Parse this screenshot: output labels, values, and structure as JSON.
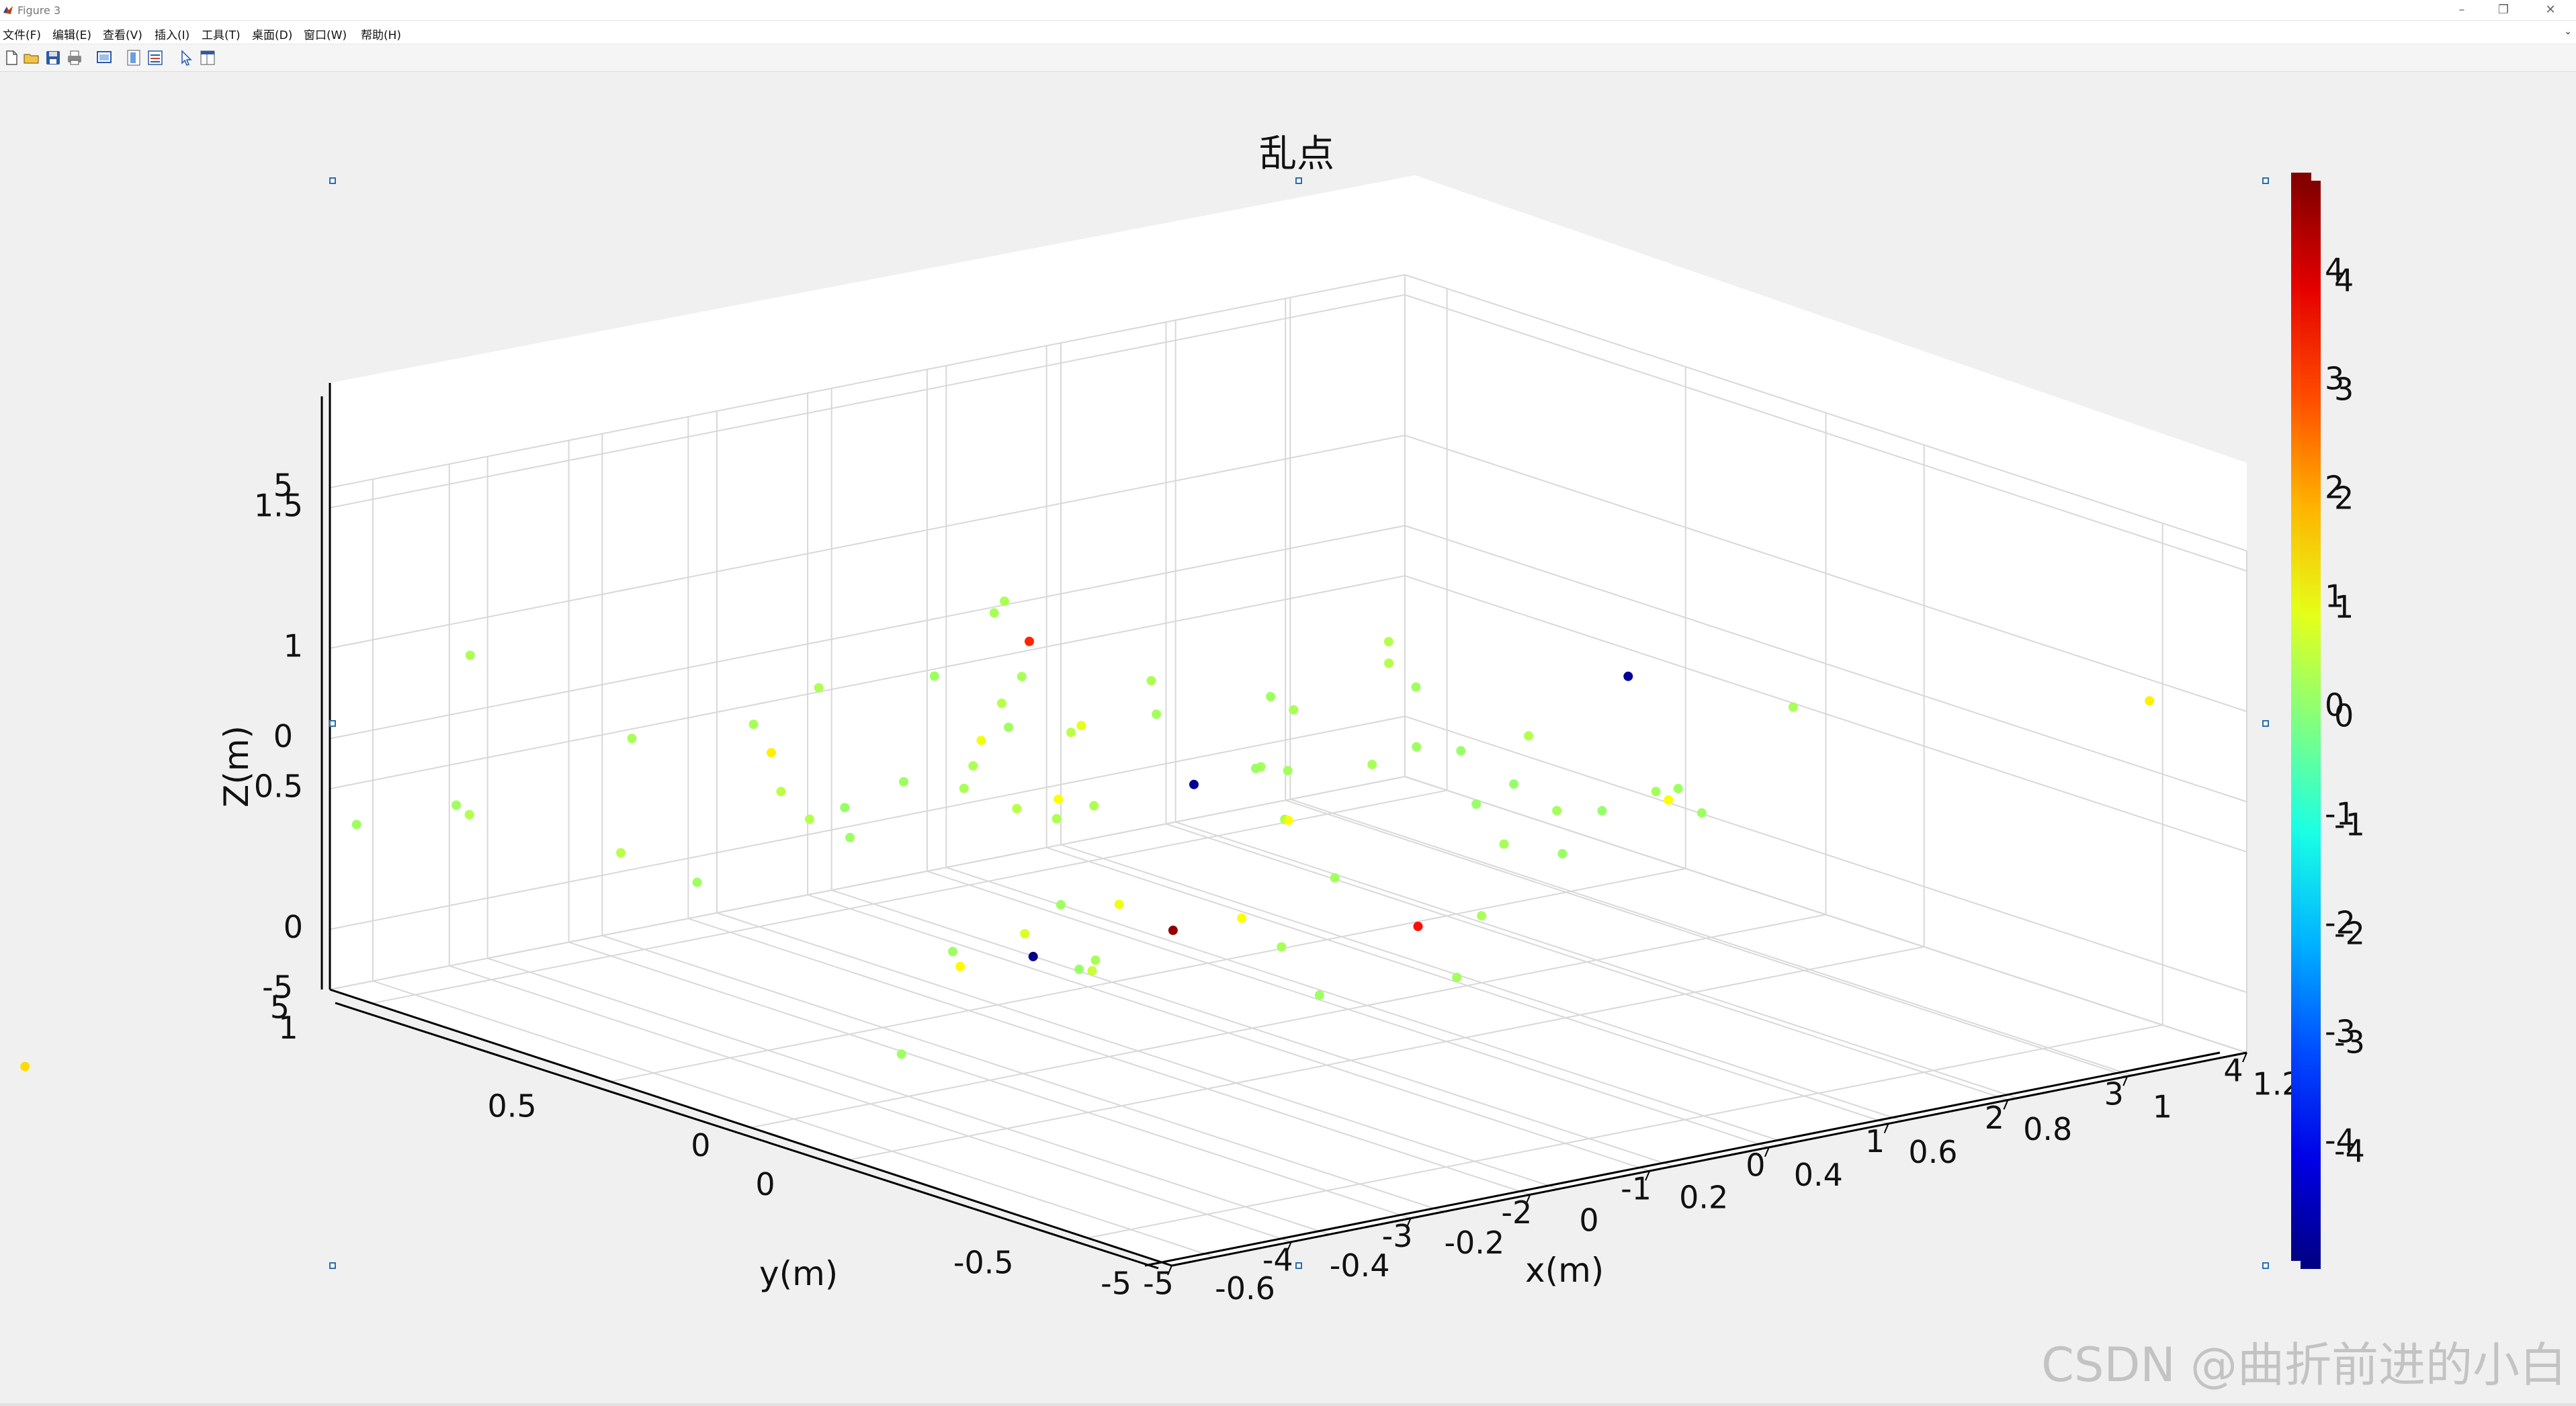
{
  "window": {
    "title": "Figure 3",
    "minimize_glyph": "–",
    "maximize_glyph": "❐",
    "close_glyph": "✕"
  },
  "menu": {
    "items": [
      "文件(F)",
      "编辑(E)",
      "查看(V)",
      "插入(I)",
      "工具(T)",
      "桌面(D)",
      "窗口(W)",
      "帮助(H)"
    ],
    "overflow_glyph": "⌄"
  },
  "toolbar": {
    "icons": [
      "new-figure-icon",
      "open-file-icon",
      "save-icon",
      "print-icon",
      "link-plot-icon",
      "insert-colorbar-icon",
      "insert-legend-icon",
      "edit-plot-arrow-icon",
      "property-inspector-icon"
    ]
  },
  "colors": {
    "grid": "#d8d8d8",
    "axis": "#000000",
    "window_bg": "#f0f0f0",
    "axes_bg": "#ffffff",
    "colormap": "jet"
  },
  "chart_data": {
    "type": "scatter3d",
    "title": "乱点",
    "xlabel": "x(m)",
    "ylabel": "y(m)",
    "zlabel": "Z(m)",
    "xlim": [
      -5,
      5
    ],
    "ylim": [
      -5,
      5
    ],
    "zlim": [
      -5,
      5
    ],
    "grid": true,
    "x_ticks": [
      "-5",
      "-4",
      "-3",
      "-2",
      "-1",
      "0",
      "1",
      "2",
      "3",
      "4"
    ],
    "x_ticks_overlay": [
      "-0.6",
      "-0.4",
      "-0.2",
      "0",
      "0.2",
      "0.4",
      "0.6",
      "0.8",
      "1",
      "1.2"
    ],
    "y_ticks": [
      "-5",
      "0",
      "5"
    ],
    "y_ticks_overlay": [
      "-0.5",
      "0",
      "0.5",
      "1"
    ],
    "z_ticks": [
      "-5",
      "0",
      "5"
    ],
    "z_ticks_overlay": [
      "0",
      "0.5",
      "1",
      "1.5"
    ],
    "colorbar": {
      "colormap": "jet",
      "range": [
        -5,
        5
      ],
      "ticks": [
        "-4",
        "-3",
        "-2",
        "-1",
        "0",
        "1",
        "2",
        "3",
        "4"
      ],
      "location": "right"
    },
    "points": [
      [
        0.1,
        0.51,
        0.03,
        0.3
      ],
      [
        0.28,
        0.45,
        0.05,
        0.45
      ],
      [
        -0.16,
        0.63,
        0.12,
        0.5
      ],
      [
        0.0,
        0.85,
        -0.05,
        0.3
      ],
      [
        0.42,
        0.13,
        0.21,
        0.2
      ],
      [
        -0.03,
        0.93,
        -0.12,
        0.3
      ],
      [
        0.12,
        0.29,
        0.18,
        0.45
      ],
      [
        0.44,
        0.74,
        0.08,
        0.4
      ],
      [
        0.23,
        0.1,
        0.12,
        0.35
      ],
      [
        0.37,
        0.58,
        0.1,
        1.0
      ],
      [
        0.54,
        0.06,
        0.14,
        0.3
      ],
      [
        -0.04,
        0.27,
        -0.21,
        0.3
      ],
      [
        0.58,
        0.45,
        0.04,
        0.3
      ],
      [
        0.39,
        0.26,
        0.19,
        0.4
      ],
      [
        0.06,
        0.91,
        0.19,
        0.45
      ],
      [
        0.69,
        0.37,
        -0.09,
        0.2
      ],
      [
        0.39,
        0.7,
        0.07,
        0.55
      ],
      [
        0.0,
        0.11,
        0.03,
        0.25
      ],
      [
        -0.05,
        0.5,
        0.01,
        0.3
      ],
      [
        0.18,
        0.66,
        -0.05,
        0.5
      ],
      [
        0.02,
        0.68,
        -0.06,
        0.55
      ],
      [
        0.59,
        0.41,
        0.05,
        0.25
      ],
      [
        0.86,
        0.36,
        0.05,
        0.4
      ],
      [
        0.16,
        0.68,
        0.08,
        1.4
      ],
      [
        0.31,
        0.86,
        -0.16,
        0.6
      ],
      [
        0.39,
        0.13,
        -0.04,
        0.4
      ],
      [
        0.15,
        0.58,
        0.03,
        0.25
      ],
      [
        0.57,
        0.59,
        -0.08,
        0.35
      ],
      [
        0.34,
        0.3,
        0.08,
        0.4
      ],
      [
        0.8,
        0.42,
        -0.12,
        0.3
      ],
      [
        0.62,
        0.43,
        -0.08,
        0.25
      ],
      [
        0.29,
        0.24,
        -0.12,
        0.4
      ],
      [
        0.49,
        0.65,
        0.1,
        0.45
      ],
      [
        0.41,
        0.75,
        -0.04,
        1.1
      ],
      [
        0.57,
        0.47,
        0.2,
        0.5
      ],
      [
        0.4,
        0.93,
        -0.03,
        0.45
      ],
      [
        0.32,
        0.07,
        -0.1,
        0.35
      ],
      [
        0.07,
        0.18,
        -0.02,
        0.4
      ],
      [
        0.75,
        0.7,
        0.04,
        0.5
      ],
      [
        0.52,
        0.2,
        -0.01,
        0.25
      ],
      [
        0.43,
        0.76,
        0.2,
        0.4
      ],
      [
        0.46,
        0.13,
        0.14,
        0.35
      ],
      [
        0.21,
        0.4,
        -0.09,
        0.3
      ],
      [
        0.6,
        0.96,
        -0.21,
        0.3
      ],
      [
        0.46,
        0.47,
        0.18,
        0.3
      ],
      [
        0.29,
        0.49,
        0.17,
        0.55
      ],
      [
        0.14,
        0.82,
        0.04,
        0.4
      ],
      [
        0.2,
        0.08,
        -0.09,
        0.3
      ],
      [
        0.51,
        0.85,
        0.14,
        0.45
      ],
      [
        0.12,
        0.4,
        0.18,
        0.4
      ],
      [
        0.62,
        0.81,
        -0.11,
        0.35
      ],
      [
        0.45,
        0.18,
        0.05,
        0.4
      ],
      [
        0.18,
        0.49,
        -0.22,
        0.3
      ],
      [
        0.45,
        0.43,
        0.18,
        0.4
      ],
      [
        0.52,
        0.9,
        -0.22,
        0.45
      ],
      [
        0.36,
        0.36,
        0.14,
        0.25
      ],
      [
        0.31,
        0.58,
        -0.04,
        0.55
      ],
      [
        0.12,
        0.65,
        0.17,
        0.4
      ],
      [
        0.49,
        0.52,
        0.0,
        0.35
      ],
      [
        0.39,
        0.78,
        0.08,
        0.3
      ],
      [
        0.7,
        0.47,
        0.0,
        0.5
      ],
      [
        0.65,
        0.54,
        0.08,
        0.35
      ],
      [
        0.15,
        0.51,
        0.12,
        0.3
      ],
      [
        0.56,
        0.14,
        0.13,
        0.35
      ],
      [
        0.73,
        0.39,
        0.15,
        -4.8
      ],
      [
        0.2,
        0.42,
        -0.2,
        -4.9
      ],
      [
        0.42,
        0.51,
        0.0,
        -4.8
      ],
      [
        -0.73,
        0.43,
        -0.03,
        1.6
      ],
      [
        0.4,
        0.68,
        0.2,
        3.4
      ],
      [
        0.15,
        0.19,
        0.0,
        4.8
      ],
      [
        0.14,
        0.43,
        -0.2,
        1.3
      ],
      [
        0.2,
        0.35,
        -0.19,
        0.7
      ],
      [
        0.37,
        0.18,
        -0.08,
        3.6
      ],
      [
        0.2,
        0.43,
        -0.16,
        0.9
      ],
      [
        0.2,
        0.39,
        0.13,
        1.2
      ],
      [
        0.5,
        0.5,
        -0.1,
        1.2
      ],
      [
        0.3,
        0.3,
        -0.1,
        1.2
      ],
      [
        0.28,
        0.42,
        -0.13,
        1.1
      ],
      [
        0.65,
        0.24,
        0.02,
        1.2
      ],
      [
        0.98,
        0.09,
        0.16,
        1.4
      ]
    ]
  },
  "watermark": "CSDN @曲折前进的小白"
}
